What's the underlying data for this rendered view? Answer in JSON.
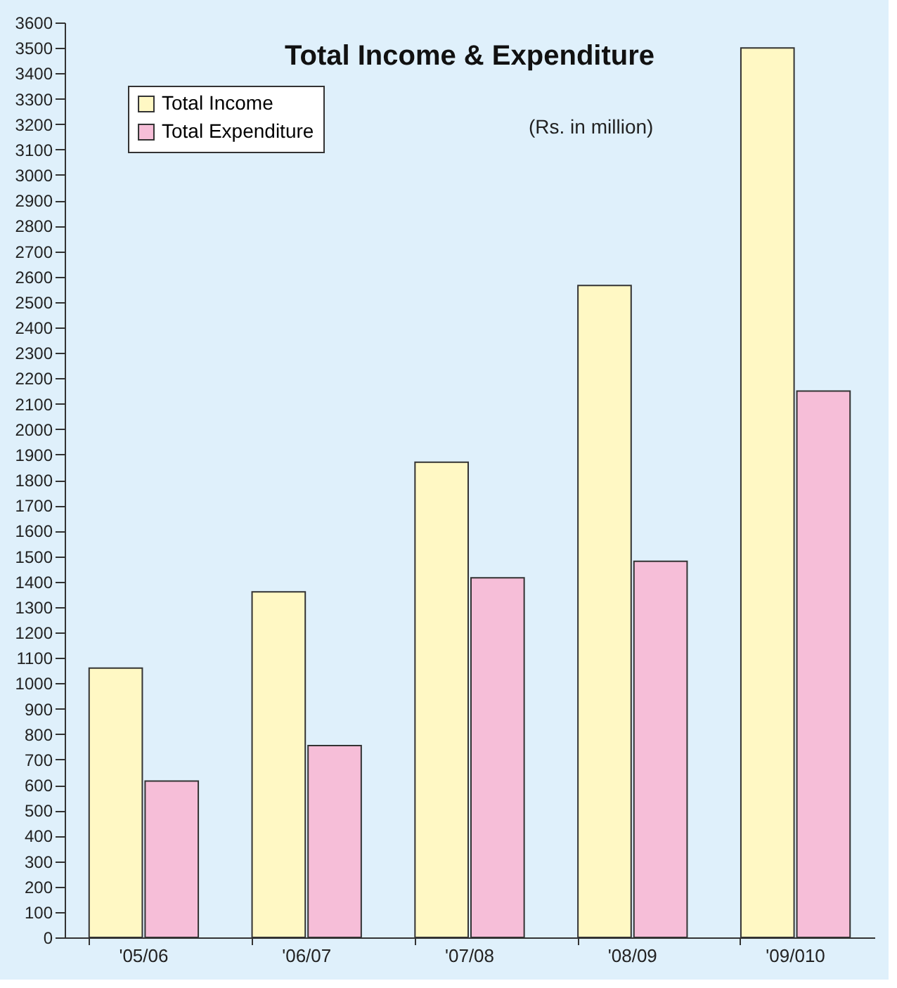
{
  "chart_data": {
    "type": "bar",
    "title": "Total Income & Expenditure",
    "annotations": [
      "(Rs. in million)"
    ],
    "categories": [
      "'05/06",
      "'06/07",
      "'07/08",
      "'08/09",
      "'09/010"
    ],
    "series": [
      {
        "name": "Total Income",
        "color": "#fff8c4",
        "values": [
          1060,
          1360,
          1870,
          2565,
          3500
        ]
      },
      {
        "name": "Total Expenditure",
        "color": "#f6bed8",
        "values": [
          615,
          755,
          1415,
          1480,
          2150
        ]
      }
    ],
    "ylim": [
      0,
      3600
    ],
    "yticks": [
      0,
      100,
      200,
      300,
      400,
      500,
      600,
      700,
      800,
      900,
      1000,
      1100,
      1200,
      1300,
      1400,
      1500,
      1600,
      1700,
      1800,
      1900,
      2000,
      2100,
      2200,
      2300,
      2400,
      2500,
      2600,
      2700,
      2800,
      2900,
      3000,
      3100,
      3200,
      3300,
      3400,
      3500,
      3600
    ],
    "grid": false,
    "legend": "top left"
  }
}
